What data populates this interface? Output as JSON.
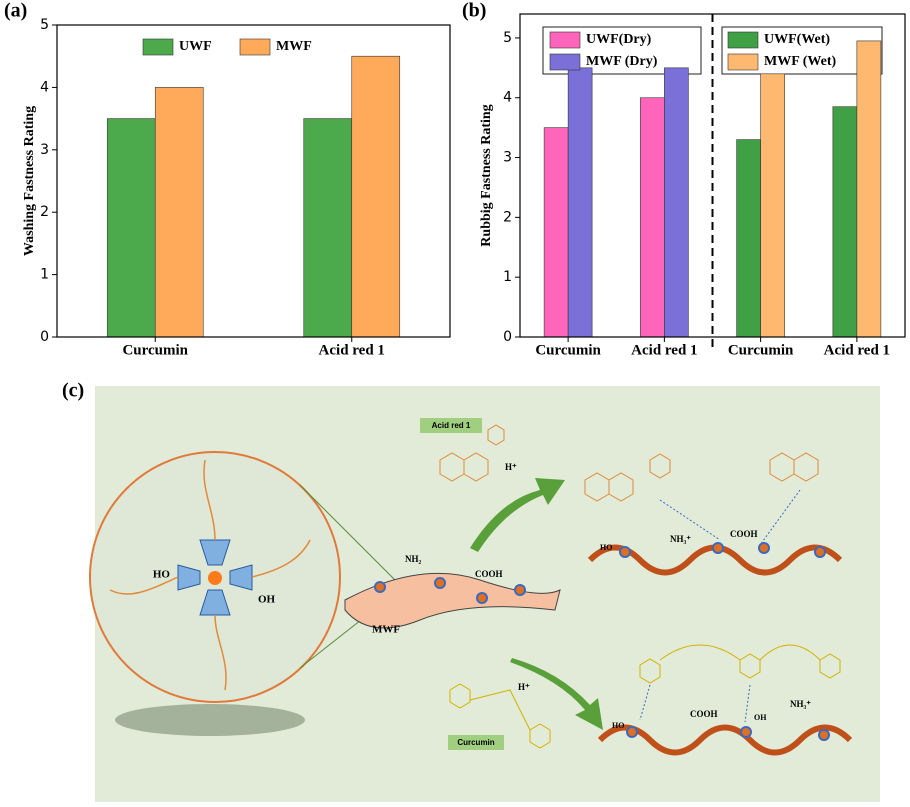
{
  "panels": {
    "a": "(a)",
    "b": "(b)",
    "c": "(c)"
  },
  "chart_data": [
    {
      "type": "bar",
      "ylabel": "Washing Fastness Rating",
      "categories": [
        "Curcumin",
        "Acid red 1"
      ],
      "series": [
        {
          "name": "UWF",
          "color": "#4caa4c",
          "values": [
            3.5,
            3.5
          ]
        },
        {
          "name": "MWF",
          "color": "#ffaa5a",
          "values": [
            4,
            4.5
          ]
        }
      ],
      "ylim": [
        0,
        5
      ],
      "yticks": [
        0,
        1,
        2,
        3,
        4,
        5
      ],
      "legend": "top"
    },
    {
      "type": "bar",
      "ylabel": "Rubbig Fastness Rating",
      "categories": [
        "Curcumin",
        "Acid red 1",
        "Curcumin",
        "Acid red 1"
      ],
      "series": [
        {
          "name": "UWF(Dry)",
          "color": "#ff66bb",
          "values": [
            3.5,
            4.0,
            null,
            null
          ]
        },
        {
          "name": "MWF (Dry)",
          "color": "#7b70d8",
          "values": [
            4.5,
            4.5,
            null,
            null
          ]
        },
        {
          "name": "UWF(Wet)",
          "color": "#3fa046",
          "values": [
            null,
            null,
            3.3,
            3.85
          ]
        },
        {
          "name": "MWF (Wet)",
          "color": "#ffb870",
          "values": [
            null,
            null,
            4.4,
            4.95
          ]
        }
      ],
      "ylim": [
        0,
        5.4
      ],
      "yticks": [
        0,
        1,
        2,
        3,
        4,
        5
      ],
      "legend": "top"
    }
  ],
  "diagram": {
    "acid_label": "Acid red 1",
    "curcumin_label": "Curcumin",
    "fabric_label": "MWF",
    "h_plus": "H⁺",
    "nh2": "NH₂",
    "cooh": "COOH",
    "nh3": "NH₃⁺",
    "oh": "OH",
    "ho": "HO"
  }
}
